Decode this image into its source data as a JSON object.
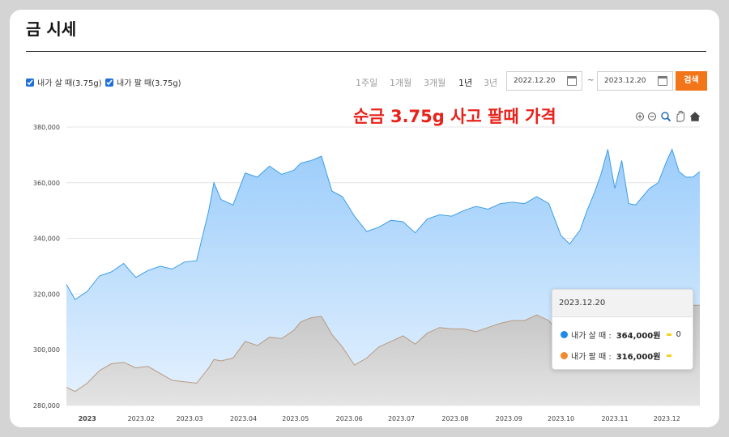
{
  "page": {
    "title": "금 시세"
  },
  "filters": {
    "buy_checkbox_label": "내가 살 때(3.75g)",
    "sell_checkbox_label": "내가 팔 때(3.75g)",
    "buy_checked": true,
    "sell_checked": true,
    "periods": [
      "1주일",
      "1개월",
      "3개월",
      "1년",
      "3년"
    ],
    "active_period": "1년",
    "start_date": "2022.12.20",
    "date_separator": "~",
    "end_date": "2023.12.20",
    "search_label": "검색"
  },
  "toolbar_icons": [
    "zoom-in-icon",
    "zoom-out-icon",
    "magnify-icon",
    "pan-hand-icon",
    "home-icon"
  ],
  "tooltip": {
    "date": "2023.12.20",
    "buy_label": "내가 살 때 :",
    "buy_value": "364,000원",
    "buy_extra": "0",
    "sell_label": "내가 팔 때 :",
    "sell_value": "316,000원"
  },
  "colors": {
    "buy_series": "#1e8ce6",
    "sell_series": "#f28a2e",
    "buy_area": "#9ccdfb",
    "sell_area": "#c4c4c4",
    "accent_button": "#f27619",
    "caption_red": "#e8221b"
  },
  "chart_data": {
    "type": "area",
    "title": "",
    "caption": "순금 3.75g 사고 팔때 가격",
    "xlabel": "",
    "ylabel": "",
    "ylim": [
      280000,
      380000
    ],
    "yticks": [
      "380,000",
      "360,000",
      "340,000",
      "320,000",
      "300,000",
      "280,000"
    ],
    "xticks": [
      "2023",
      "2023.02",
      "2023.03",
      "2023.04",
      "2023.05",
      "2023.06",
      "2023.07",
      "2023.08",
      "2023.09",
      "2023.10",
      "2023.11",
      "2023.12"
    ],
    "grid": true,
    "x": [
      "2022-12-20",
      "2022-12-25",
      "2023-01-01",
      "2023-01-08",
      "2023-01-15",
      "2023-01-22",
      "2023-01-29",
      "2023-02-05",
      "2023-02-12",
      "2023-02-19",
      "2023-02-26",
      "2023-03-05",
      "2023-03-12",
      "2023-03-15",
      "2023-03-19",
      "2023-03-26",
      "2023-04-02",
      "2023-04-09",
      "2023-04-16",
      "2023-04-23",
      "2023-04-30",
      "2023-05-04",
      "2023-05-10",
      "2023-05-16",
      "2023-05-22",
      "2023-05-28",
      "2023-06-04",
      "2023-06-11",
      "2023-06-18",
      "2023-06-25",
      "2023-07-02",
      "2023-07-09",
      "2023-07-16",
      "2023-07-23",
      "2023-07-30",
      "2023-08-06",
      "2023-08-13",
      "2023-08-20",
      "2023-08-27",
      "2023-09-03",
      "2023-09-10",
      "2023-09-17",
      "2023-09-24",
      "2023-10-01",
      "2023-10-06",
      "2023-10-12",
      "2023-10-16",
      "2023-10-20",
      "2023-10-24",
      "2023-10-28",
      "2023-11-01",
      "2023-11-05",
      "2023-11-09",
      "2023-11-13",
      "2023-11-17",
      "2023-11-21",
      "2023-11-26",
      "2023-12-01",
      "2023-12-04",
      "2023-12-08",
      "2023-12-12",
      "2023-12-16",
      "2023-12-20"
    ],
    "series": [
      {
        "name": "내가 살 때(3.75g)",
        "values": [
          323500,
          318000,
          321000,
          326500,
          328000,
          331000,
          326000,
          328500,
          330000,
          329000,
          331500,
          332000,
          350000,
          360000,
          354000,
          352000,
          363500,
          362000,
          366000,
          363000,
          364500,
          367000,
          368000,
          369500,
          357000,
          355000,
          348000,
          342500,
          344000,
          346500,
          346000,
          342000,
          347000,
          348500,
          348000,
          350000,
          351500,
          350500,
          352500,
          353000,
          352500,
          355000,
          352500,
          341000,
          338000,
          343000,
          350000,
          356000,
          363000,
          372000,
          358000,
          368000,
          352500,
          352000,
          355000,
          358000,
          360000,
          368000,
          372000,
          364000,
          362000,
          362000,
          364000
        ]
      },
      {
        "name": "내가 팔 때(3.75g)",
        "values": [
          286500,
          285000,
          288000,
          292500,
          295000,
          295500,
          293500,
          294000,
          291500,
          289000,
          288500,
          288000,
          293500,
          296500,
          296000,
          297000,
          303000,
          301500,
          304500,
          304000,
          307000,
          310000,
          311500,
          312000,
          305500,
          301000,
          294500,
          297000,
          301000,
          303000,
          305000,
          302000,
          306000,
          308000,
          307500,
          307500,
          306500,
          308000,
          309500,
          310500,
          310500,
          312500,
          310500,
          305000,
          305000,
          307500,
          309500,
          312000,
          313500,
          314000,
          312500,
          315000,
          313000,
          312000,
          313500,
          315000,
          316000,
          314500,
          314000,
          315000,
          315500,
          316000,
          316000
        ]
      }
    ]
  }
}
